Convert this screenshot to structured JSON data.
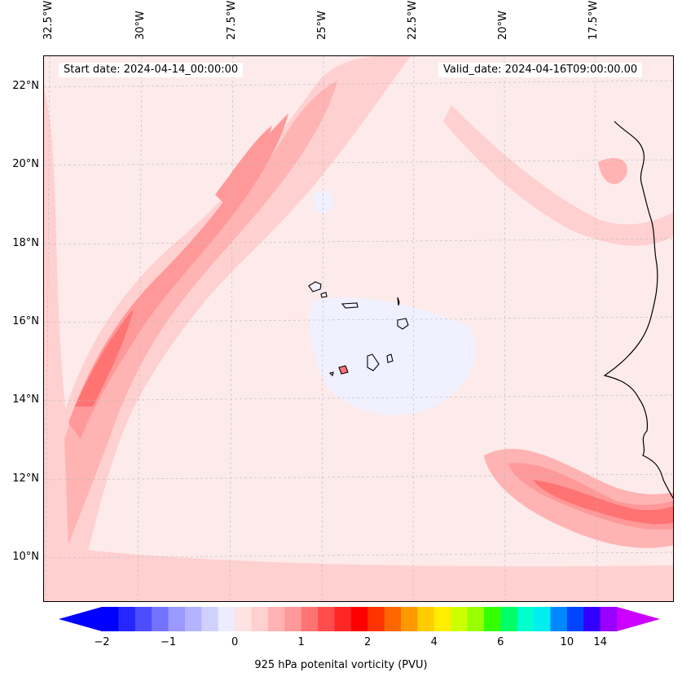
{
  "map": {
    "start_date": "Start date: 2024-04-14_00:00:00",
    "valid_date": "Valid_date: 2024-04-16T09:00:00.00",
    "lon_labels": [
      "32.5°W",
      "30°W",
      "27.5°W",
      "25°W",
      "22.5°W",
      "20°W",
      "17.5°W"
    ],
    "lat_labels": [
      "22°N",
      "20°N",
      "18°N",
      "16°N",
      "14°N",
      "12°N",
      "10°N"
    ],
    "background_color": "#fdeaea",
    "coastline_color": "#000000"
  },
  "colorbar": {
    "label": "925 hPa potenital vorticity (PVU)",
    "tick_labels": [
      "−2",
      "−1",
      "0",
      "1",
      "2",
      "4",
      "6",
      "10",
      "14"
    ],
    "colors": [
      "#0000ff",
      "#2626ff",
      "#4d4dff",
      "#7373ff",
      "#9999ff",
      "#b3b3ff",
      "#d0d0ff",
      "#ececff",
      "#ffe3e3",
      "#ffd0d0",
      "#ffb3b3",
      "#ff9999",
      "#ff7373",
      "#ff4d4d",
      "#ff2626",
      "#ff0000",
      "#ff3300",
      "#ff6600",
      "#ff9900",
      "#ffcc00",
      "#ffee00",
      "#ccff00",
      "#99ff00",
      "#33ff00",
      "#00ff66",
      "#00ffcc",
      "#00eeee",
      "#0088ff",
      "#0044ff",
      "#3300ff",
      "#9900ff"
    ],
    "under_color": "#0000ff",
    "over_color": "#cc00ff"
  }
}
